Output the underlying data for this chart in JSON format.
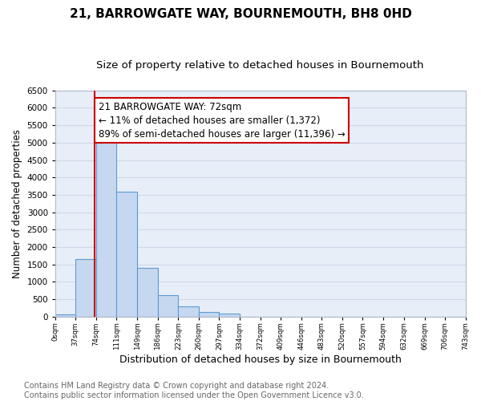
{
  "title": "21, BARROWGATE WAY, BOURNEMOUTH, BH8 0HD",
  "subtitle": "Size of property relative to detached houses in Bournemouth",
  "xlabel": "Distribution of detached houses by size in Bournemouth",
  "ylabel": "Number of detached properties",
  "bar_edges": [
    0,
    37,
    74,
    111,
    149,
    186,
    223,
    260,
    297,
    334,
    372,
    409,
    446,
    483,
    520,
    557,
    594,
    632,
    669,
    706,
    743
  ],
  "bar_heights": [
    50,
    1650,
    5080,
    3600,
    1400,
    610,
    300,
    140,
    90,
    0,
    0,
    0,
    0,
    0,
    0,
    0,
    0,
    0,
    0,
    0
  ],
  "bar_color": "#c5d8ef",
  "bar_edge_color": "#5b9bd5",
  "property_line_x": 72,
  "property_line_color": "#cc0000",
  "annotation_line1": "21 BARROWGATE WAY: 72sqm",
  "annotation_line2": "← 11% of detached houses are smaller (1,372)",
  "annotation_line3": "89% of semi-detached houses are larger (11,396) →",
  "annotation_box_color": "#ffffff",
  "annotation_box_edge_color": "#cc0000",
  "ylim": [
    0,
    6500
  ],
  "yticks": [
    0,
    500,
    1000,
    1500,
    2000,
    2500,
    3000,
    3500,
    4000,
    4500,
    5000,
    5500,
    6000,
    6500
  ],
  "xtick_labels": [
    "0sqm",
    "37sqm",
    "74sqm",
    "111sqm",
    "149sqm",
    "186sqm",
    "223sqm",
    "260sqm",
    "297sqm",
    "334sqm",
    "372sqm",
    "409sqm",
    "446sqm",
    "483sqm",
    "520sqm",
    "557sqm",
    "594sqm",
    "632sqm",
    "669sqm",
    "706sqm",
    "743sqm"
  ],
  "grid_color": "#d0d8e8",
  "plot_bg_color": "#e8eef8",
  "fig_bg_color": "#ffffff",
  "footer_text": "Contains HM Land Registry data © Crown copyright and database right 2024.\nContains public sector information licensed under the Open Government Licence v3.0.",
  "title_fontsize": 11,
  "subtitle_fontsize": 9.5,
  "xlabel_fontsize": 9,
  "ylabel_fontsize": 8.5,
  "footer_fontsize": 7,
  "annot_fontsize": 8.5
}
